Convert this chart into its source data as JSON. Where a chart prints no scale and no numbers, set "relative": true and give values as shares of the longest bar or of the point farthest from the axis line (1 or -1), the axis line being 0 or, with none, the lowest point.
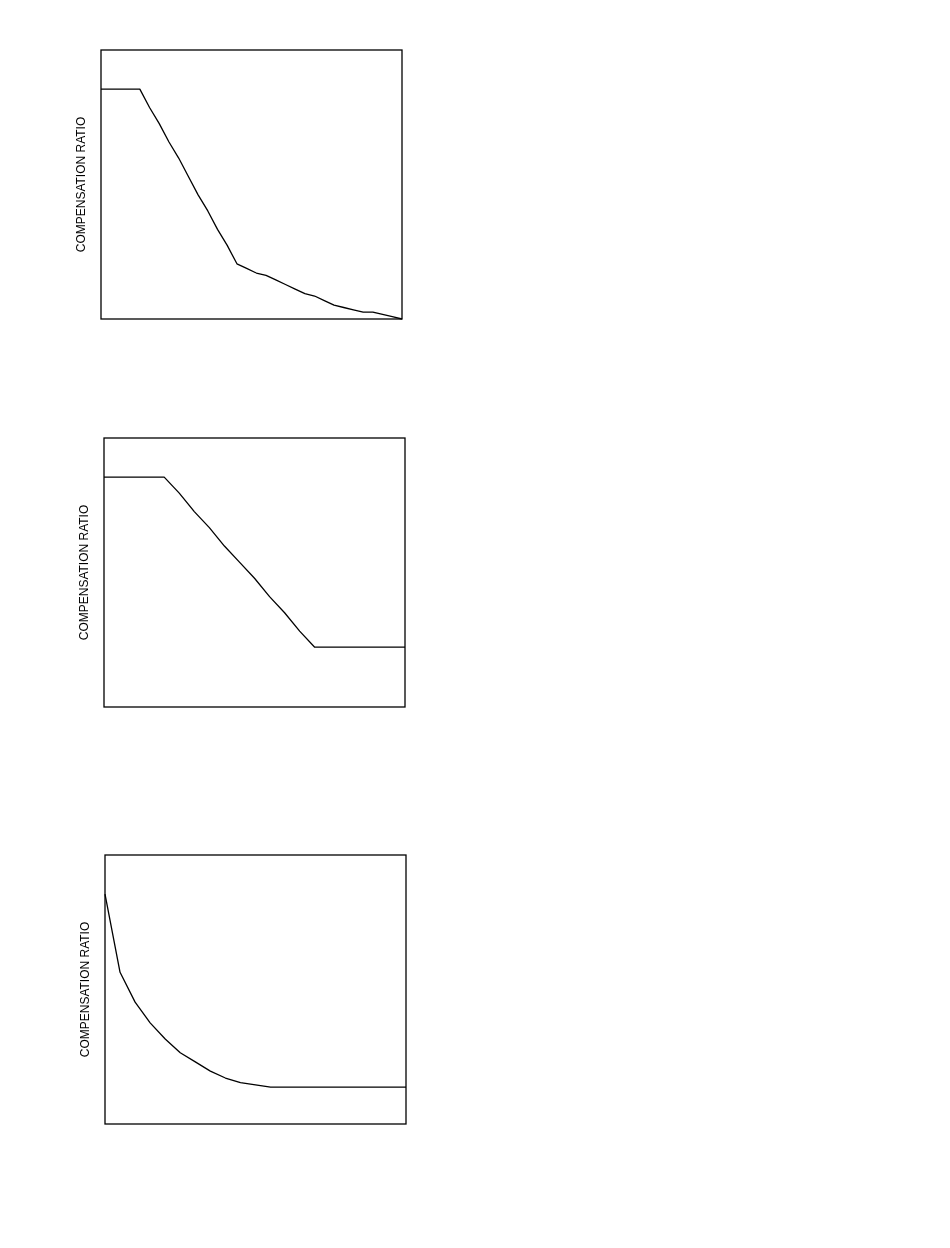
{
  "chart_data": [
    {
      "type": "line",
      "relative": true,
      "ylabel": "COMPENSATION RATIO",
      "categories": [
        null,
        null,
        null,
        null,
        null,
        null,
        null,
        null,
        null,
        null,
        null,
        null,
        null,
        null,
        null,
        null,
        null,
        null,
        null,
        null,
        null,
        null,
        null,
        null,
        null,
        null,
        null,
        null,
        null,
        null,
        null,
        null
      ],
      "series": [
        {
          "color": "#000000",
          "values": [
            1,
            1,
            1,
            1,
            1,
            0.92,
            0.85,
            0.77,
            0.7,
            0.62,
            0.54,
            0.47,
            0.39,
            0.32,
            0.24,
            0.22,
            0.2,
            0.19,
            0.17,
            0.15,
            0.13,
            0.11,
            0.1,
            0.08,
            0.06,
            0.05,
            0.04,
            0.03,
            0.03,
            0.02,
            0.01,
            0
          ]
        }
      ]
    },
    {
      "type": "line",
      "relative": true,
      "ylabel": "COMPENSATION RATIO",
      "categories": [
        null,
        null,
        null,
        null,
        null,
        null,
        null,
        null,
        null,
        null,
        null,
        null,
        null,
        null,
        null,
        null,
        null,
        null,
        null,
        null,
        null
      ],
      "series": [
        {
          "color": "#000000",
          "values": [
            1,
            1,
            1,
            1,
            1,
            0.93,
            0.85,
            0.78,
            0.7,
            0.63,
            0.56,
            0.48,
            0.41,
            0.33,
            0.26,
            0.26,
            0.26,
            0.26,
            0.26,
            0.26,
            0.26
          ]
        }
      ]
    },
    {
      "type": "line",
      "relative": true,
      "ylabel": "COMPENSATION RATIO",
      "categories": [
        null,
        null,
        null,
        null,
        null,
        null,
        null,
        null,
        null,
        null,
        null,
        null,
        null,
        null,
        null,
        null,
        null,
        null,
        null,
        null,
        null
      ],
      "series": [
        {
          "color": "#000000",
          "values": [
            1,
            0.66,
            0.53,
            0.44,
            0.37,
            0.31,
            0.27,
            0.23,
            0.2,
            0.18,
            0.17,
            0.16,
            0.16,
            0.16,
            0.16,
            0.16,
            0.16,
            0.16,
            0.16,
            0.16,
            0.16
          ]
        }
      ]
    }
  ]
}
